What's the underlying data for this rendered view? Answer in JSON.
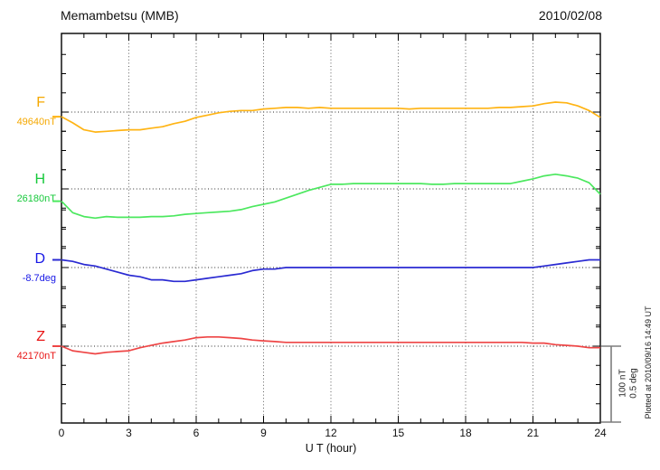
{
  "header": {
    "station_title": "Memambetsu (MMB)",
    "date": "2010/02/08"
  },
  "footer": {
    "xlabel": "U T (hour)",
    "plotted_note": "Plotted at 2010/09/16 14:49 UT"
  },
  "scale_bar": {
    "nt_label": "100 nT",
    "deg_label": "0.5 deg",
    "bar_color": "#7d7d7d"
  },
  "chart_data": {
    "type": "line",
    "title": "Memambetsu (MMB)",
    "subtitle_date": "2010/02/08",
    "xlabel": "U T (hour)",
    "x_range": [
      0,
      24
    ],
    "xticks": [
      0,
      3,
      6,
      9,
      12,
      15,
      18,
      21,
      24
    ],
    "x_step_hours": 0.5,
    "grid": "dotted vertical lines every 3 h; dotted horizontal reference line per component",
    "scale": {
      "nT_per_division": 100,
      "deg_per_division": 0.5
    },
    "axis_color": "#000000",
    "series": [
      {
        "name": "F",
        "label": "F",
        "ref_label": "49640nT",
        "unit": "nT",
        "label_color": "#f5a800",
        "line_color": "#ffb414",
        "values": [
          -6,
          -14,
          -23,
          -26,
          -25,
          -24,
          -23,
          -23,
          -21,
          -19,
          -15,
          -12,
          -7,
          -4,
          -1,
          1,
          2,
          2,
          4,
          5,
          6,
          6,
          5,
          6,
          5,
          5,
          5,
          5,
          5,
          5,
          5,
          4,
          5,
          5,
          5,
          5,
          5,
          5,
          5,
          6,
          6,
          7,
          8,
          11,
          13,
          12,
          8,
          2,
          -7
        ]
      },
      {
        "name": "H",
        "label": "H",
        "ref_label": "26180nT",
        "unit": "nT",
        "label_color": "#17c93b",
        "line_color": "#4ce85f",
        "values": [
          -16,
          -31,
          -36,
          -38,
          -36,
          -37,
          -37,
          -37,
          -36,
          -36,
          -35,
          -33,
          -32,
          -31,
          -30,
          -29,
          -27,
          -23,
          -20,
          -17,
          -12,
          -7,
          -2,
          2,
          6,
          6,
          7,
          7,
          7,
          7,
          7,
          7,
          7,
          6,
          6,
          7,
          7,
          7,
          7,
          7,
          7,
          10,
          13,
          17,
          19,
          17,
          14,
          8,
          -7
        ]
      },
      {
        "name": "D",
        "label": "D",
        "ref_label": "-8.7deg",
        "unit": "deg",
        "label_color": "#1616e6",
        "line_color": "#2a2ad2",
        "values": [
          0.05,
          0.04,
          0.02,
          0.01,
          -0.01,
          -0.03,
          -0.05,
          -0.06,
          -0.08,
          -0.08,
          -0.09,
          -0.09,
          -0.08,
          -0.07,
          -0.06,
          -0.05,
          -0.04,
          -0.02,
          -0.01,
          -0.01,
          0,
          0,
          0,
          0,
          0,
          0,
          0,
          0,
          0,
          0,
          0,
          0,
          0,
          0,
          0,
          0,
          0,
          0,
          0,
          0,
          0,
          0,
          0,
          0.01,
          0.02,
          0.03,
          0.04,
          0.05,
          0.05
        ]
      },
      {
        "name": "Z",
        "label": "Z",
        "ref_label": "42170nT",
        "unit": "nT",
        "label_color": "#e81414",
        "line_color": "#ee4545",
        "values": [
          0,
          -6,
          -8,
          -10,
          -8,
          -7,
          -6,
          -2,
          1,
          4,
          6,
          8,
          11,
          12,
          12,
          11,
          10,
          8,
          7,
          6,
          5,
          5,
          5,
          5,
          5,
          5,
          5,
          5,
          5,
          5,
          5,
          5,
          5,
          5,
          5,
          5,
          5,
          5,
          5,
          5,
          5,
          5,
          4,
          4,
          2,
          1,
          0,
          -2,
          -2
        ]
      }
    ]
  }
}
